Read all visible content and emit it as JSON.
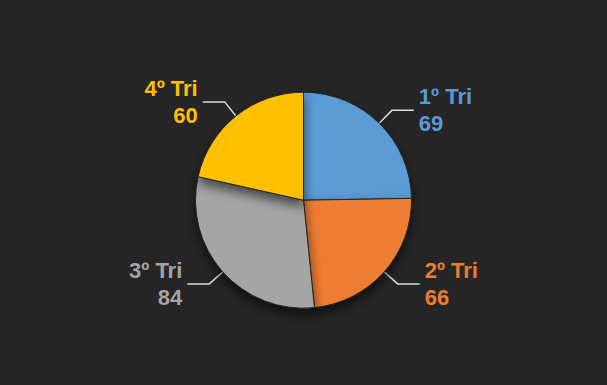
{
  "chart_data": {
    "type": "pie",
    "categories": [
      "1º Tri",
      "2º Tri",
      "3º Tri",
      "4º Tri"
    ],
    "values": [
      69,
      66,
      84,
      60
    ],
    "colors": [
      "#5b9bd5",
      "#ed7d31",
      "#a5a5a5",
      "#ffc000"
    ],
    "data_labels": true
  }
}
